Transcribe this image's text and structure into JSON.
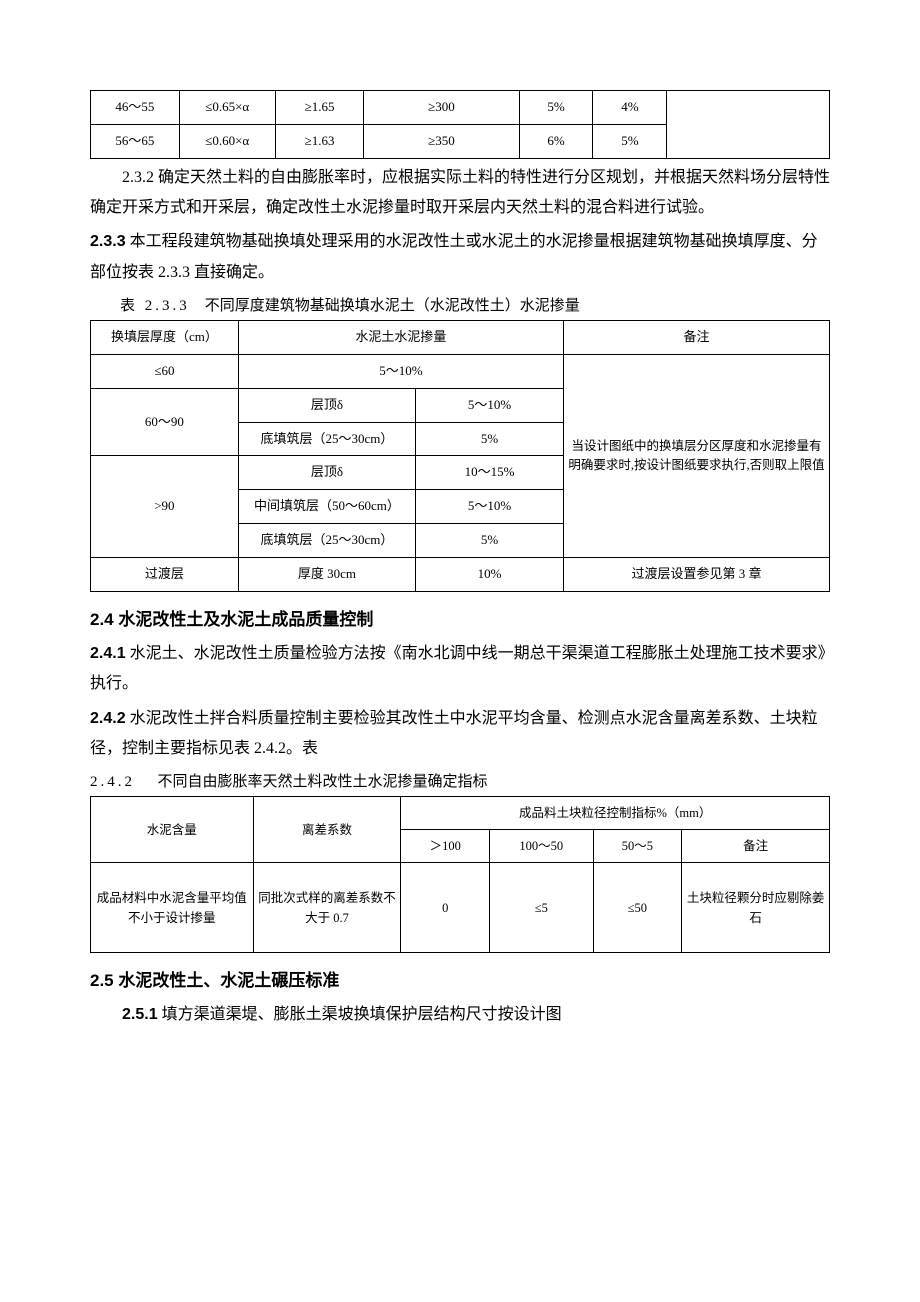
{
  "table1": {
    "rows": [
      [
        "46～55",
        "≤0.65×α",
        "≥1.65",
        "≥300",
        "5%",
        "4%",
        ""
      ],
      [
        "56～65",
        "≤0.60×α",
        "≥1.63",
        "≥350",
        "6%",
        "5%",
        ""
      ]
    ]
  },
  "p232": "2.3.2 确定天然土料的自由膨胀率时，应根据实际土料的特性进行分区规划，并根据天然料场分层特性确定开采方式和开采层，确定改性土水泥掺量时取开采层内天然土料的混合料进行试验。",
  "p233_num": "2.3.3",
  "p233_body": " 本工程段建筑物基础换填处理采用的水泥改性土或水泥土的水泥掺量根据建筑物基础换填厚度、分部位按表 2.3.3 直接确定。",
  "table2": {
    "captionNum": "表 2.3.3",
    "captionTitle": "不同厚度建筑物基础换填水泥土（水泥改性土）水泥掺量",
    "headers": [
      "换填层厚度（cm）",
      "水泥土水泥掺量",
      "备注"
    ],
    "row_le60": [
      "≤60",
      "5～10%"
    ],
    "note": "当设计图纸中的换填层分区厚度和水泥掺量有明确要求时,按设计图纸要求执行,否则取上限值",
    "row_60_90_a": [
      "60～90",
      "层顶δ",
      "5～10%"
    ],
    "row_60_90_b": [
      "底填筑层（25～30cm）",
      "5%"
    ],
    "row_gt90_a": [
      ">90",
      "层顶δ",
      "10～15%"
    ],
    "row_gt90_b": [
      "中间填筑层（50～60cm）",
      "5～10%"
    ],
    "row_gt90_c": [
      "底填筑层（25～30cm）",
      "5%"
    ],
    "row_trans": [
      "过渡层",
      "厚度 30cm",
      "10%",
      "过渡层设置参见第 3 章"
    ]
  },
  "h24": "2.4 水泥改性土及水泥土成品质量控制",
  "p241_num": "2.4.1",
  "p241_body": " 水泥土、水泥改性土质量检验方法按《南水北调中线一期总干渠渠道工程膨胀土处理施工技术要求》执行。",
  "p242_num": "2.4.2",
  "p242_body": " 水泥改性土拌合料质量控制主要检验其改性土中水泥平均含量、检测点水泥含量离差系数、土块粒径，控制主要指标见表 2.4.2。表",
  "table3": {
    "captionNum": "2.4.2",
    "captionTitle": "不同自由膨胀率天然土料改性土水泥掺量确定指标",
    "header_top": [
      "水泥含量",
      "离差系数",
      "成品料土块粒径控制指标%（mm）"
    ],
    "header_sub": [
      "＞100",
      "100～50",
      "50～5",
      "备注"
    ],
    "row": [
      "成品材料中水泥含量平均值不小于设计掺量",
      "同批次式样的离差系数不大于 0.7",
      "0",
      "≤5",
      "≤50",
      "土块粒径颗分时应剔除姜石"
    ]
  },
  "h25": "2.5 水泥改性土、水泥土碾压标准",
  "p251_num": "2.5.1",
  "p251_body": " 填方渠道渠堤、膨胀土渠坡换填保护层结构尺寸按设计图"
}
